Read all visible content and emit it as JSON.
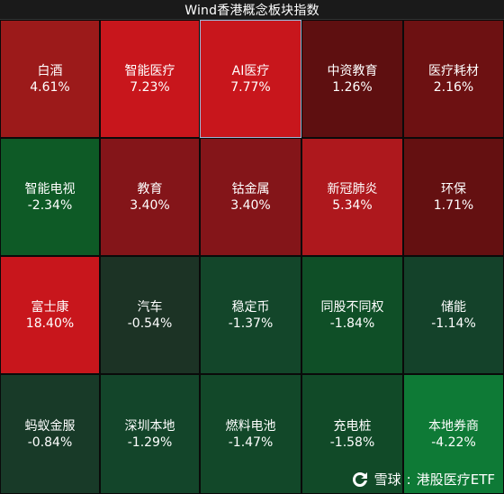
{
  "title": "Wind香港概念板块指数",
  "watermark": {
    "brand": "雪球",
    "separator": ":",
    "account": "港股医疗ETF"
  },
  "tiles": [
    {
      "name": "白酒",
      "change": "4.61%",
      "value": 4.61,
      "color": "#9c1a1a"
    },
    {
      "name": "智能医疗",
      "change": "7.23%",
      "value": 7.23,
      "color": "#c8161c"
    },
    {
      "name": "AI医疗",
      "change": "7.77%",
      "value": 7.77,
      "color": "#c8161c"
    },
    {
      "name": "中资教育",
      "change": "1.26%",
      "value": 1.26,
      "color": "#5e0f10"
    },
    {
      "name": "医疗耗材",
      "change": "2.16%",
      "value": 2.16,
      "color": "#6d1112"
    },
    {
      "name": "智能电视",
      "change": "-2.34%",
      "value": -2.34,
      "color": "#0e5a26"
    },
    {
      "name": "教育",
      "change": "3.40%",
      "value": 3.4,
      "color": "#841519"
    },
    {
      "name": "钴金属",
      "change": "3.40%",
      "value": 3.4,
      "color": "#841519"
    },
    {
      "name": "新冠肺炎",
      "change": "5.34%",
      "value": 5.34,
      "color": "#ae181d"
    },
    {
      "name": "环保",
      "change": "1.71%",
      "value": 1.71,
      "color": "#641011"
    },
    {
      "name": "富士康",
      "change": "18.40%",
      "value": 18.4,
      "color": "#c8161c"
    },
    {
      "name": "汽车",
      "change": "-0.54%",
      "value": -0.54,
      "color": "#1c3325"
    },
    {
      "name": "稳定币",
      "change": "-1.37%",
      "value": -1.37,
      "color": "#13462a"
    },
    {
      "name": "同股不同权",
      "change": "-1.84%",
      "value": -1.84,
      "color": "#0f4f27"
    },
    {
      "name": "储能",
      "change": "-1.14%",
      "value": -1.14,
      "color": "#14422a"
    },
    {
      "name": "蚂蚁金服",
      "change": "-0.84%",
      "value": -0.84,
      "color": "#183a28"
    },
    {
      "name": "深圳本地",
      "change": "-1.29%",
      "value": -1.29,
      "color": "#13452a"
    },
    {
      "name": "燃料电池",
      "change": "-1.47%",
      "value": -1.47,
      "color": "#124829"
    },
    {
      "name": "充电桩",
      "change": "-1.58%",
      "value": -1.58,
      "color": "#114a28"
    },
    {
      "name": "本地券商",
      "change": "-4.22%",
      "value": -4.22,
      "color": "#0e7a36"
    }
  ],
  "selected_tile": "AI医疗"
}
